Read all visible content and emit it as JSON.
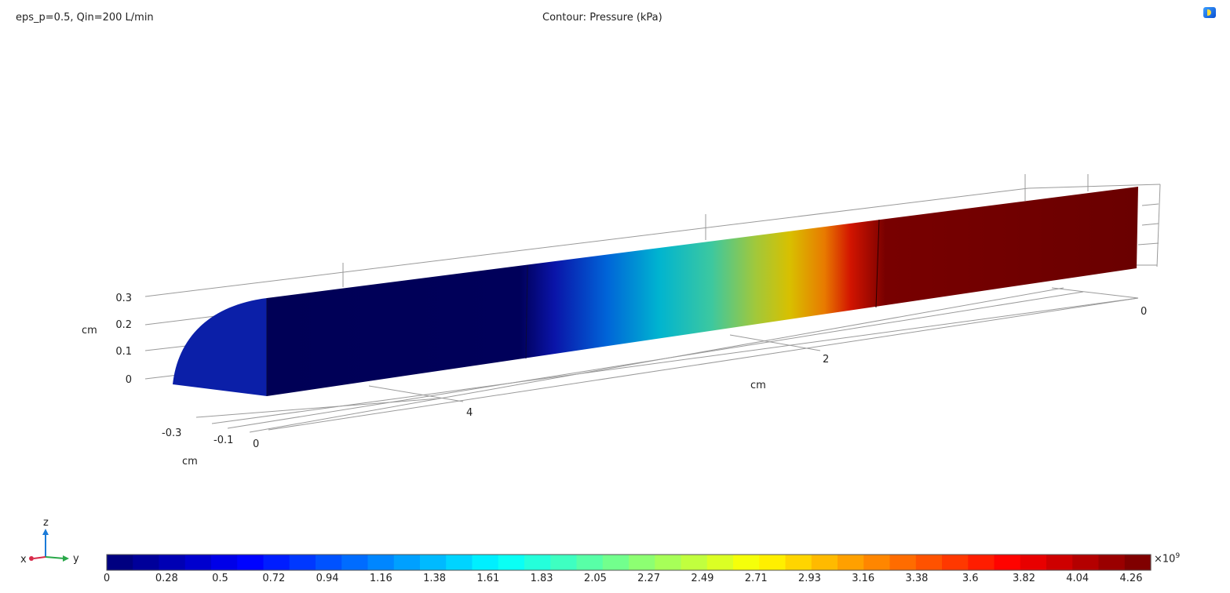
{
  "header": {
    "parameters": "eps_p=0.5, Qin=200 L/min",
    "title": "Contour: Pressure (kPa)"
  },
  "axes": {
    "z_ticks": [
      "0.3",
      "0.2",
      "0.1",
      "0"
    ],
    "z_unit": "cm",
    "x_ticks": [
      "-0.3",
      "-0.1",
      "0"
    ],
    "x_unit": "cm",
    "y_ticks": [
      "4",
      "2",
      "0"
    ],
    "y_unit": "cm"
  },
  "triad": {
    "z": "z",
    "x": "x",
    "y": "y"
  },
  "colorbar": {
    "ticks": [
      "0",
      "0.28",
      "0.5",
      "0.72",
      "0.94",
      "1.16",
      "1.38",
      "1.61",
      "1.83",
      "2.05",
      "2.27",
      "2.49",
      "2.71",
      "2.93",
      "3.16",
      "3.38",
      "3.6",
      "3.82",
      "4.04",
      "4.26"
    ],
    "exponent_prefix": "×10",
    "exponent": "9",
    "segments": 40
  },
  "colors": {
    "low": "#00006a",
    "high": "#6b0000",
    "frame": "#8a8a8a"
  }
}
